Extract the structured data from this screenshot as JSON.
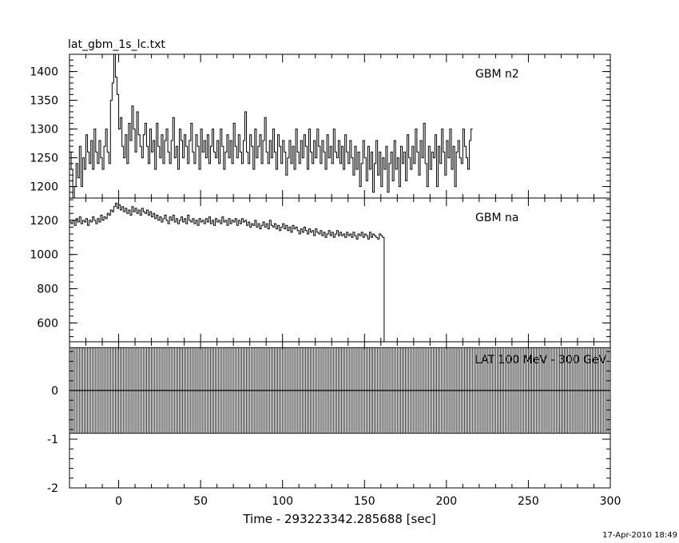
{
  "file_title": "lat_gbm_1s_lc.txt",
  "timestamp": "17-Apr-2010 18:49",
  "chart_data": [
    {
      "type": "line",
      "panel_label": "GBM n2",
      "xlim": [
        -30,
        300
      ],
      "ylim": [
        1180,
        1430
      ],
      "yticks": [
        1200,
        1250,
        1300,
        1350,
        1400
      ],
      "series": [
        {
          "x_start": -30,
          "x_step": 1,
          "values": [
            1260,
            1230,
            1180,
            1200,
            1240,
            1215,
            1270,
            1200,
            1250,
            1230,
            1290,
            1260,
            1240,
            1280,
            1230,
            1300,
            1260,
            1240,
            1280,
            1250,
            1230,
            1270,
            1300,
            1260,
            1240,
            1350,
            1380,
            1430,
            1390,
            1360,
            1300,
            1320,
            1270,
            1250,
            1290,
            1240,
            1310,
            1280,
            1340,
            1300,
            1260,
            1330,
            1290,
            1270,
            1250,
            1290,
            1310,
            1270,
            1240,
            1300,
            1260,
            1280,
            1230,
            1310,
            1270,
            1250,
            1290,
            1240,
            1280,
            1300,
            1260,
            1240,
            1280,
            1320,
            1250,
            1270,
            1230,
            1300,
            1280,
            1250,
            1290,
            1270,
            1240,
            1280,
            1310,
            1260,
            1240,
            1290,
            1270,
            1230,
            1300,
            1260,
            1280,
            1250,
            1290,
            1240,
            1270,
            1300,
            1260,
            1250,
            1280,
            1240,
            1300,
            1270,
            1230,
            1260,
            1290,
            1250,
            1280,
            1240,
            1310,
            1270,
            1250,
            1290,
            1260,
            1240,
            1280,
            1330,
            1260,
            1240,
            1290,
            1270,
            1230,
            1300,
            1250,
            1270,
            1290,
            1240,
            1280,
            1320,
            1260,
            1240,
            1280,
            1250,
            1300,
            1260,
            1230,
            1290,
            1270,
            1240,
            1280,
            1260,
            1220,
            1250,
            1280,
            1240,
            1270,
            1230,
            1300,
            1260,
            1240,
            1280,
            1250,
            1290,
            1270,
            1230,
            1300,
            1260,
            1240,
            1280,
            1250,
            1300,
            1270,
            1240,
            1280,
            1260,
            1230,
            1290,
            1250,
            1270,
            1240,
            1300,
            1260,
            1250,
            1280,
            1240,
            1270,
            1230,
            1290,
            1260,
            1240,
            1280,
            1250,
            1220,
            1270,
            1230,
            1260,
            1200,
            1240,
            1280,
            1250,
            1210,
            1270,
            1230,
            1260,
            1190,
            1240,
            1280,
            1220,
            1260,
            1200,
            1250,
            1230,
            1270,
            1190,
            1240,
            1260,
            1210,
            1280,
            1230,
            1250,
            1200,
            1270,
            1240,
            1260,
            1210,
            1290,
            1250,
            1230,
            1270,
            1240,
            1300,
            1260,
            1220,
            1280,
            1250,
            1310,
            1240,
            1200,
            1270,
            1230,
            1260,
            1250,
            1290,
            1200,
            1270,
            1240,
            1300,
            1260,
            1220,
            1280,
            1250,
            1300,
            1230,
            1270,
            1200,
            1260,
            1280,
            1250,
            1240,
            1300,
            1270,
            1250,
            1230,
            1280,
            1300
          ]
        }
      ]
    },
    {
      "type": "line",
      "panel_label": "GBM na",
      "xlim": [
        -30,
        300
      ],
      "ylim": [
        490,
        1330
      ],
      "yticks": [
        600,
        800,
        1000,
        1200
      ],
      "series": [
        {
          "x_start": -30,
          "x_step": 1,
          "values": [
            1190,
            1180,
            1200,
            1170,
            1210,
            1190,
            1220,
            1180,
            1200,
            1190,
            1210,
            1170,
            1200,
            1190,
            1220,
            1200,
            1180,
            1210,
            1190,
            1230,
            1200,
            1220,
            1210,
            1240,
            1230,
            1260,
            1250,
            1280,
            1300,
            1270,
            1290,
            1260,
            1280,
            1250,
            1270,
            1240,
            1260,
            1230,
            1280,
            1250,
            1270,
            1240,
            1260,
            1230,
            1270,
            1250,
            1240,
            1260,
            1230,
            1250,
            1220,
            1240,
            1210,
            1230,
            1200,
            1220,
            1190,
            1210,
            1230,
            1200,
            1180,
            1220,
            1200,
            1230,
            1190,
            1210,
            1180,
            1200,
            1220,
            1190,
            1210,
            1180,
            1230,
            1200,
            1190,
            1210,
            1180,
            1200,
            1170,
            1210,
            1190,
            1200,
            1180,
            1210,
            1190,
            1220,
            1180,
            1200,
            1170,
            1210,
            1190,
            1200,
            1180,
            1220,
            1190,
            1200,
            1170,
            1210,
            1180,
            1200,
            1190,
            1210,
            1170,
            1200,
            1180,
            1210,
            1190,
            1200,
            1170,
            1190,
            1160,
            1180,
            1170,
            1200,
            1160,
            1180,
            1150,
            1170,
            1190,
            1160,
            1180,
            1150,
            1200,
            1170,
            1160,
            1180,
            1150,
            1170,
            1140,
            1160,
            1180,
            1150,
            1170,
            1140,
            1160,
            1130,
            1170,
            1150,
            1160,
            1140,
            1120,
            1150,
            1130,
            1160,
            1140,
            1120,
            1150,
            1130,
            1140,
            1110,
            1150,
            1130,
            1120,
            1140,
            1110,
            1130,
            1100,
            1120,
            1140,
            1110,
            1130,
            1100,
            1120,
            1140,
            1110,
            1130,
            1110,
            1120,
            1100,
            1130,
            1110,
            1120,
            1100,
            1130,
            1110,
            1090,
            1120,
            1110,
            1130,
            1100,
            1120,
            1110,
            1090,
            1130,
            1100,
            1120,
            1110,
            1100,
            1090,
            1120,
            1110,
            1100
          ]
        }
      ],
      "drop_to": 490
    },
    {
      "type": "bar",
      "panel_label": "LAT 100 MeV - 300 GeV",
      "xlim": [
        -30,
        300
      ],
      "ylim": [
        -2,
        1
      ],
      "yticks": [
        -2,
        -1,
        0
      ],
      "bin_width": 1,
      "bin_values": [
        0.88,
        -0.88
      ],
      "zero_line": true
    }
  ],
  "shared_x": {
    "xlabel": "Time - 293223342.285688 [sec]",
    "xticks": [
      0,
      50,
      100,
      150,
      200,
      250,
      300
    ]
  }
}
